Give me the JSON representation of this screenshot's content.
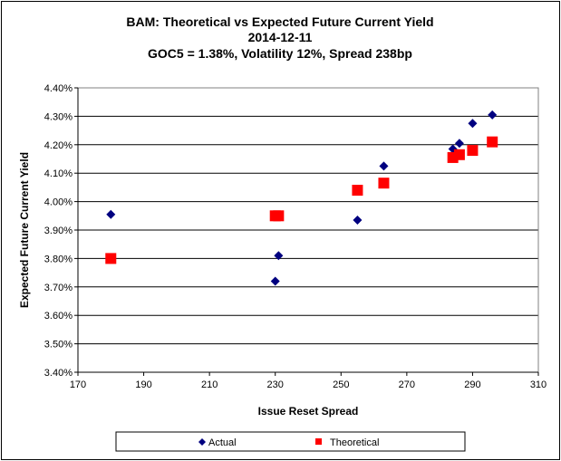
{
  "chart_data": {
    "type": "scatter",
    "title": [
      "BAM: Theoretical vs Expected Future Current Yield",
      "2014-12-11",
      "GOC5 = 1.38%, Volatility 12%, Spread 238bp"
    ],
    "xlabel": "Issue Reset Spread",
    "ylabel": "Expected Future Current Yield",
    "xlim": [
      170,
      310
    ],
    "ylim": [
      3.4,
      4.4
    ],
    "xticks": [
      "170",
      "190",
      "210",
      "230",
      "250",
      "270",
      "290",
      "310"
    ],
    "yticks": [
      "3.40%",
      "3.50%",
      "3.60%",
      "3.70%",
      "3.80%",
      "3.90%",
      "4.00%",
      "4.10%",
      "4.20%",
      "4.30%",
      "4.40%"
    ],
    "grid": "horizontal",
    "legend_position": "bottom",
    "series": [
      {
        "name": "Actual",
        "marker": "diamond",
        "color": "#000080",
        "points": [
          [
            180,
            3.955
          ],
          [
            230,
            3.72
          ],
          [
            231,
            3.81
          ],
          [
            255,
            3.935
          ],
          [
            263,
            4.125
          ],
          [
            284,
            4.185
          ],
          [
            286,
            4.205
          ],
          [
            290,
            4.275
          ],
          [
            296,
            4.305
          ]
        ]
      },
      {
        "name": "Theoretical",
        "marker": "square",
        "color": "#ff0000",
        "points": [
          [
            180,
            3.8
          ],
          [
            230,
            3.95
          ],
          [
            231,
            3.95
          ],
          [
            255,
            4.04
          ],
          [
            263,
            4.065
          ],
          [
            284,
            4.155
          ],
          [
            286,
            4.165
          ],
          [
            290,
            4.18
          ],
          [
            296,
            4.21
          ]
        ]
      }
    ]
  }
}
